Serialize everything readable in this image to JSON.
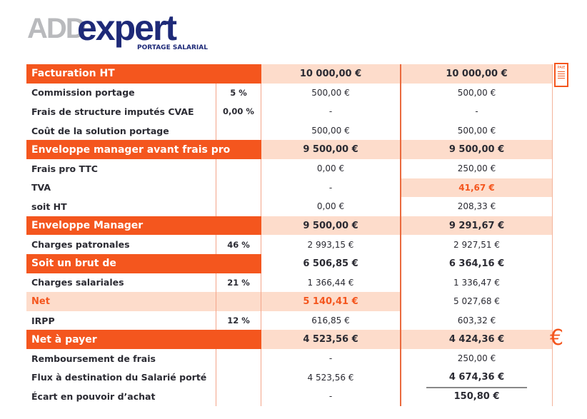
{
  "logo": {
    "part1": "ADD",
    "part2": "expert",
    "tagline": "PORTAGE SALARIAL"
  },
  "icons": {
    "payslip": "payslip-document-icon",
    "payslip_text": "PAIE",
    "euro": "€"
  },
  "colors": {
    "accent": "#f4561e",
    "highlight": "#fddccb",
    "brand": "#1e2a78"
  },
  "rows": [
    {
      "label": "Facturation HT",
      "pct": "",
      "a": "10 000,00 €",
      "b": "10 000,00 €"
    },
    {
      "label": "Commission portage",
      "pct": "5 %",
      "a": "500,00 €",
      "b": "500,00 €"
    },
    {
      "label": "Frais de structure imputés CVAE",
      "pct": "0,00 %",
      "a": "-",
      "b": "-"
    },
    {
      "label": "Coût de la solution portage",
      "pct": "",
      "a": "500,00 €",
      "b": "500,00 €"
    },
    {
      "label": "Enveloppe manager avant frais pro",
      "pct": "",
      "a": "9 500,00 €",
      "b": "9 500,00 €"
    },
    {
      "label": "Frais pro TTC",
      "pct": "",
      "a": "0,00 €",
      "b": "250,00 €"
    },
    {
      "label": "TVA",
      "pct": "",
      "a": "-",
      "b": "41,67 €"
    },
    {
      "label": "soit HT",
      "pct": "",
      "a": "0,00 €",
      "b": "208,33 €"
    },
    {
      "label": "Enveloppe Manager",
      "pct": "",
      "a": "9 500,00 €",
      "b": "9 291,67 €"
    },
    {
      "label": "Charges patronales",
      "pct": "46 %",
      "a": "2 993,15 €",
      "b": "2 927,51 €"
    },
    {
      "label": "Soit un brut de",
      "pct": "",
      "a": "6 506,85 €",
      "b": "6 364,16 €"
    },
    {
      "label": "Charges salariales",
      "pct": "21 %",
      "a": "1 366,44 €",
      "b": "1 336,47 €"
    },
    {
      "label": "Net",
      "pct": "",
      "a": "5 140,41 €",
      "b": "5 027,68 €"
    },
    {
      "label": "IRPP",
      "pct": "12 %",
      "a": "616,85 €",
      "b": "603,32 €"
    },
    {
      "label": "Net à payer",
      "pct": "",
      "a": "4 523,56 €",
      "b": "4 424,36 €"
    },
    {
      "label": "Remboursement de frais",
      "pct": "",
      "a": "-",
      "b": "250,00 €"
    },
    {
      "label": "Flux à destination du Salarié porté",
      "pct": "",
      "a": "4 523,56 €",
      "b": "4 674,36 €"
    },
    {
      "label": "Écart en pouvoir d’achat",
      "pct": "",
      "a": "-",
      "b": "150,80 €"
    }
  ]
}
